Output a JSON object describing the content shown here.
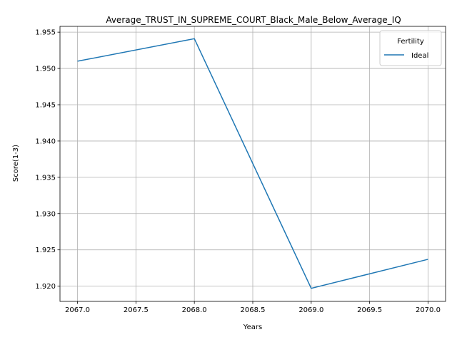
{
  "chart_data": {
    "type": "line",
    "title": "Average_TRUST_IN_SUPREME_COURT_Black_Male_Below_Average_IQ",
    "xlabel": "Years",
    "ylabel": "Score(1-3)",
    "x": [
      2067,
      2068,
      2069,
      2070
    ],
    "series": [
      {
        "name": "Ideal",
        "values": [
          1.951,
          1.9541,
          1.9197,
          1.9237
        ],
        "color": "#1f77b4"
      }
    ],
    "xlim": [
      2066.85,
      2070.15
    ],
    "ylim": [
      1.9179,
      1.9558
    ],
    "xticks": [
      2067.0,
      2067.5,
      2068.0,
      2068.5,
      2069.0,
      2069.5,
      2070.0
    ],
    "xtick_labels": [
      "2067.0",
      "2067.5",
      "2068.0",
      "2068.5",
      "2069.0",
      "2069.5",
      "2070.0"
    ],
    "yticks": [
      1.92,
      1.925,
      1.93,
      1.935,
      1.94,
      1.945,
      1.95,
      1.955
    ],
    "ytick_labels": [
      "1.920",
      "1.925",
      "1.930",
      "1.935",
      "1.940",
      "1.945",
      "1.950",
      "1.955"
    ],
    "grid": true,
    "legend": {
      "title": "Fertility",
      "position": "top-right"
    }
  }
}
